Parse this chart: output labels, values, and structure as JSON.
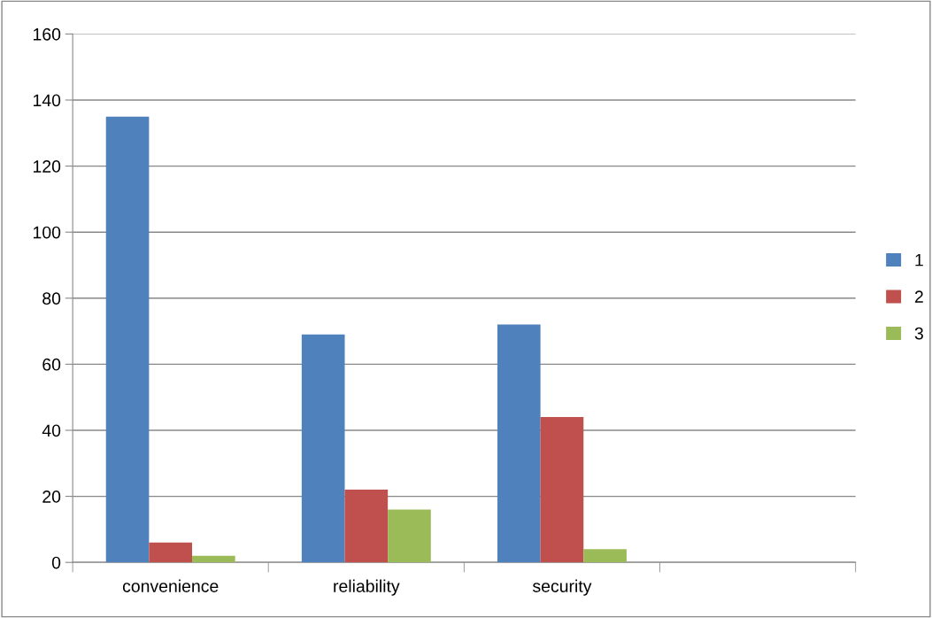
{
  "chart_data": {
    "type": "bar",
    "categories": [
      "convenience",
      "reliability",
      "security",
      null
    ],
    "series": [
      {
        "name": "1",
        "color": "#4f81bd",
        "values": [
          135,
          69,
          72,
          null
        ]
      },
      {
        "name": "2",
        "color": "#c0504d",
        "values": [
          6,
          22,
          44,
          null
        ]
      },
      {
        "name": "3",
        "color": "#9bbb59",
        "values": [
          2,
          16,
          4,
          null
        ]
      }
    ],
    "ylim": [
      0,
      160
    ],
    "yticks": [
      0,
      20,
      40,
      60,
      80,
      100,
      120,
      140,
      160
    ],
    "grid": "y",
    "legend": "right"
  }
}
